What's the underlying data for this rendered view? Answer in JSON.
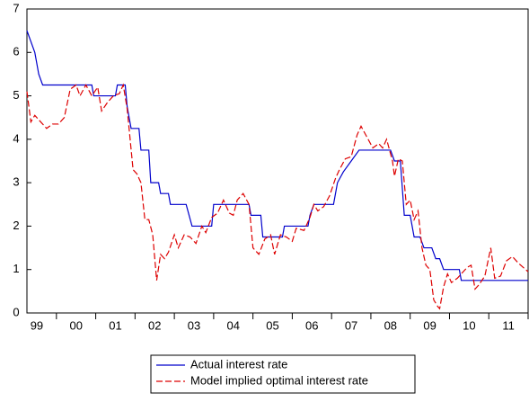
{
  "chart_data": {
    "type": "line",
    "xlim": [
      1999.25,
      2012.0
    ],
    "xticks": [
      {
        "value": 1999.5,
        "label": "99"
      },
      {
        "value": 2000.5,
        "label": "00"
      },
      {
        "value": 2001.5,
        "label": "01"
      },
      {
        "value": 2002.5,
        "label": "02"
      },
      {
        "value": 2003.5,
        "label": "03"
      },
      {
        "value": 2004.5,
        "label": "04"
      },
      {
        "value": 2005.5,
        "label": "05"
      },
      {
        "value": 2006.5,
        "label": "06"
      },
      {
        "value": 2007.5,
        "label": "07"
      },
      {
        "value": 2008.5,
        "label": "08"
      },
      {
        "value": 2009.5,
        "label": "09"
      },
      {
        "value": 2010.5,
        "label": "10"
      },
      {
        "value": 2011.5,
        "label": "11"
      }
    ],
    "ylim": [
      0,
      7
    ],
    "yticks": [
      0,
      1,
      2,
      3,
      4,
      5,
      6,
      7
    ],
    "grid": false,
    "series": [
      {
        "name": "Actual interest rate",
        "color": "#0000cc",
        "dash": false,
        "x": [
          1999.25,
          1999.35,
          1999.45,
          1999.55,
          1999.65,
          2000.9,
          2000.95,
          2001.5,
          2001.55,
          2001.75,
          2001.8,
          2001.9,
          2002.1,
          2002.15,
          2002.35,
          2002.4,
          2002.6,
          2002.65,
          2002.85,
          2002.9,
          2003.3,
          2003.45,
          2003.95,
          2004.0,
          2004.9,
          2004.95,
          2005.2,
          2005.25,
          2005.75,
          2005.8,
          2006.4,
          2006.45,
          2006.55,
          2007.05,
          2007.15,
          2007.3,
          2007.5,
          2007.7,
          2008.5,
          2008.6,
          2008.75,
          2008.85,
          2009.0,
          2009.1,
          2009.25,
          2009.35,
          2009.55,
          2009.65,
          2009.75,
          2009.85,
          2010.25,
          2010.3,
          2012.0
        ],
        "values": [
          6.5,
          6.25,
          6.0,
          5.5,
          5.25,
          5.25,
          5.0,
          5.0,
          5.25,
          5.25,
          4.75,
          4.25,
          4.25,
          3.75,
          3.75,
          3.0,
          3.0,
          2.75,
          2.75,
          2.5,
          2.5,
          2.0,
          2.0,
          2.5,
          2.5,
          2.25,
          2.25,
          1.75,
          1.75,
          2.0,
          2.0,
          2.25,
          2.5,
          2.5,
          3.0,
          3.25,
          3.5,
          3.75,
          3.75,
          3.5,
          3.5,
          2.25,
          2.25,
          1.75,
          1.75,
          1.5,
          1.5,
          1.25,
          1.25,
          1.0,
          1.0,
          0.75,
          0.75
        ]
      },
      {
        "name": "Model implied optimal interest rate",
        "color": "#dd0000",
        "dash": true,
        "x": [
          1999.25,
          1999.35,
          1999.45,
          1999.6,
          1999.75,
          1999.9,
          2000.05,
          2000.2,
          2000.35,
          2000.5,
          2000.6,
          2000.75,
          2000.9,
          2001.05,
          2001.15,
          2001.3,
          2001.45,
          2001.6,
          2001.7,
          2001.8,
          2001.95,
          2002.05,
          2002.15,
          2002.25,
          2002.35,
          2002.45,
          2002.55,
          2002.65,
          2002.75,
          2002.85,
          2003.0,
          2003.1,
          2003.25,
          2003.4,
          2003.55,
          2003.7,
          2003.8,
          2003.95,
          2004.1,
          2004.25,
          2004.4,
          2004.5,
          2004.6,
          2004.75,
          2004.9,
          2005.0,
          2005.15,
          2005.3,
          2005.45,
          2005.55,
          2005.7,
          2005.85,
          2006.0,
          2006.1,
          2006.3,
          2006.45,
          2006.55,
          2006.65,
          2006.8,
          2006.95,
          2007.1,
          2007.2,
          2007.35,
          2007.5,
          2007.65,
          2007.75,
          2007.9,
          2008.05,
          2008.2,
          2008.3,
          2008.4,
          2008.55,
          2008.6,
          2008.7,
          2008.8,
          2008.9,
          2009.0,
          2009.1,
          2009.2,
          2009.3,
          2009.4,
          2009.5,
          2009.6,
          2009.7,
          2009.75,
          2009.85,
          2009.95,
          2010.05,
          2010.2,
          2010.35,
          2010.45,
          2010.55,
          2010.65,
          2010.75,
          2010.9,
          2011.05,
          2011.15,
          2011.3,
          2011.45,
          2011.6,
          2011.75,
          2012.0
        ],
        "values": [
          5.1,
          4.4,
          4.55,
          4.4,
          4.25,
          4.35,
          4.35,
          4.5,
          5.15,
          5.25,
          5.0,
          5.25,
          5.0,
          5.2,
          4.65,
          4.85,
          5.0,
          5.05,
          5.25,
          4.7,
          3.3,
          3.2,
          3.0,
          2.15,
          2.15,
          1.8,
          0.75,
          1.35,
          1.25,
          1.4,
          1.8,
          1.5,
          1.8,
          1.75,
          1.6,
          2.0,
          1.85,
          2.2,
          2.3,
          2.6,
          2.3,
          2.25,
          2.6,
          2.75,
          2.5,
          1.5,
          1.35,
          1.7,
          1.8,
          1.35,
          1.8,
          1.75,
          1.65,
          1.95,
          1.9,
          2.2,
          2.5,
          2.35,
          2.45,
          2.7,
          3.1,
          3.3,
          3.55,
          3.6,
          4.1,
          4.3,
          4.05,
          3.8,
          3.9,
          3.8,
          4.0,
          3.5,
          3.15,
          3.55,
          3.5,
          2.5,
          2.6,
          2.15,
          2.35,
          1.5,
          1.1,
          1.0,
          0.3,
          0.15,
          0.1,
          0.6,
          0.9,
          0.7,
          0.8,
          0.95,
          1.05,
          1.1,
          0.55,
          0.65,
          0.85,
          1.5,
          0.8,
          0.85,
          1.2,
          1.3,
          1.15,
          0.95
        ]
      }
    ]
  }
}
